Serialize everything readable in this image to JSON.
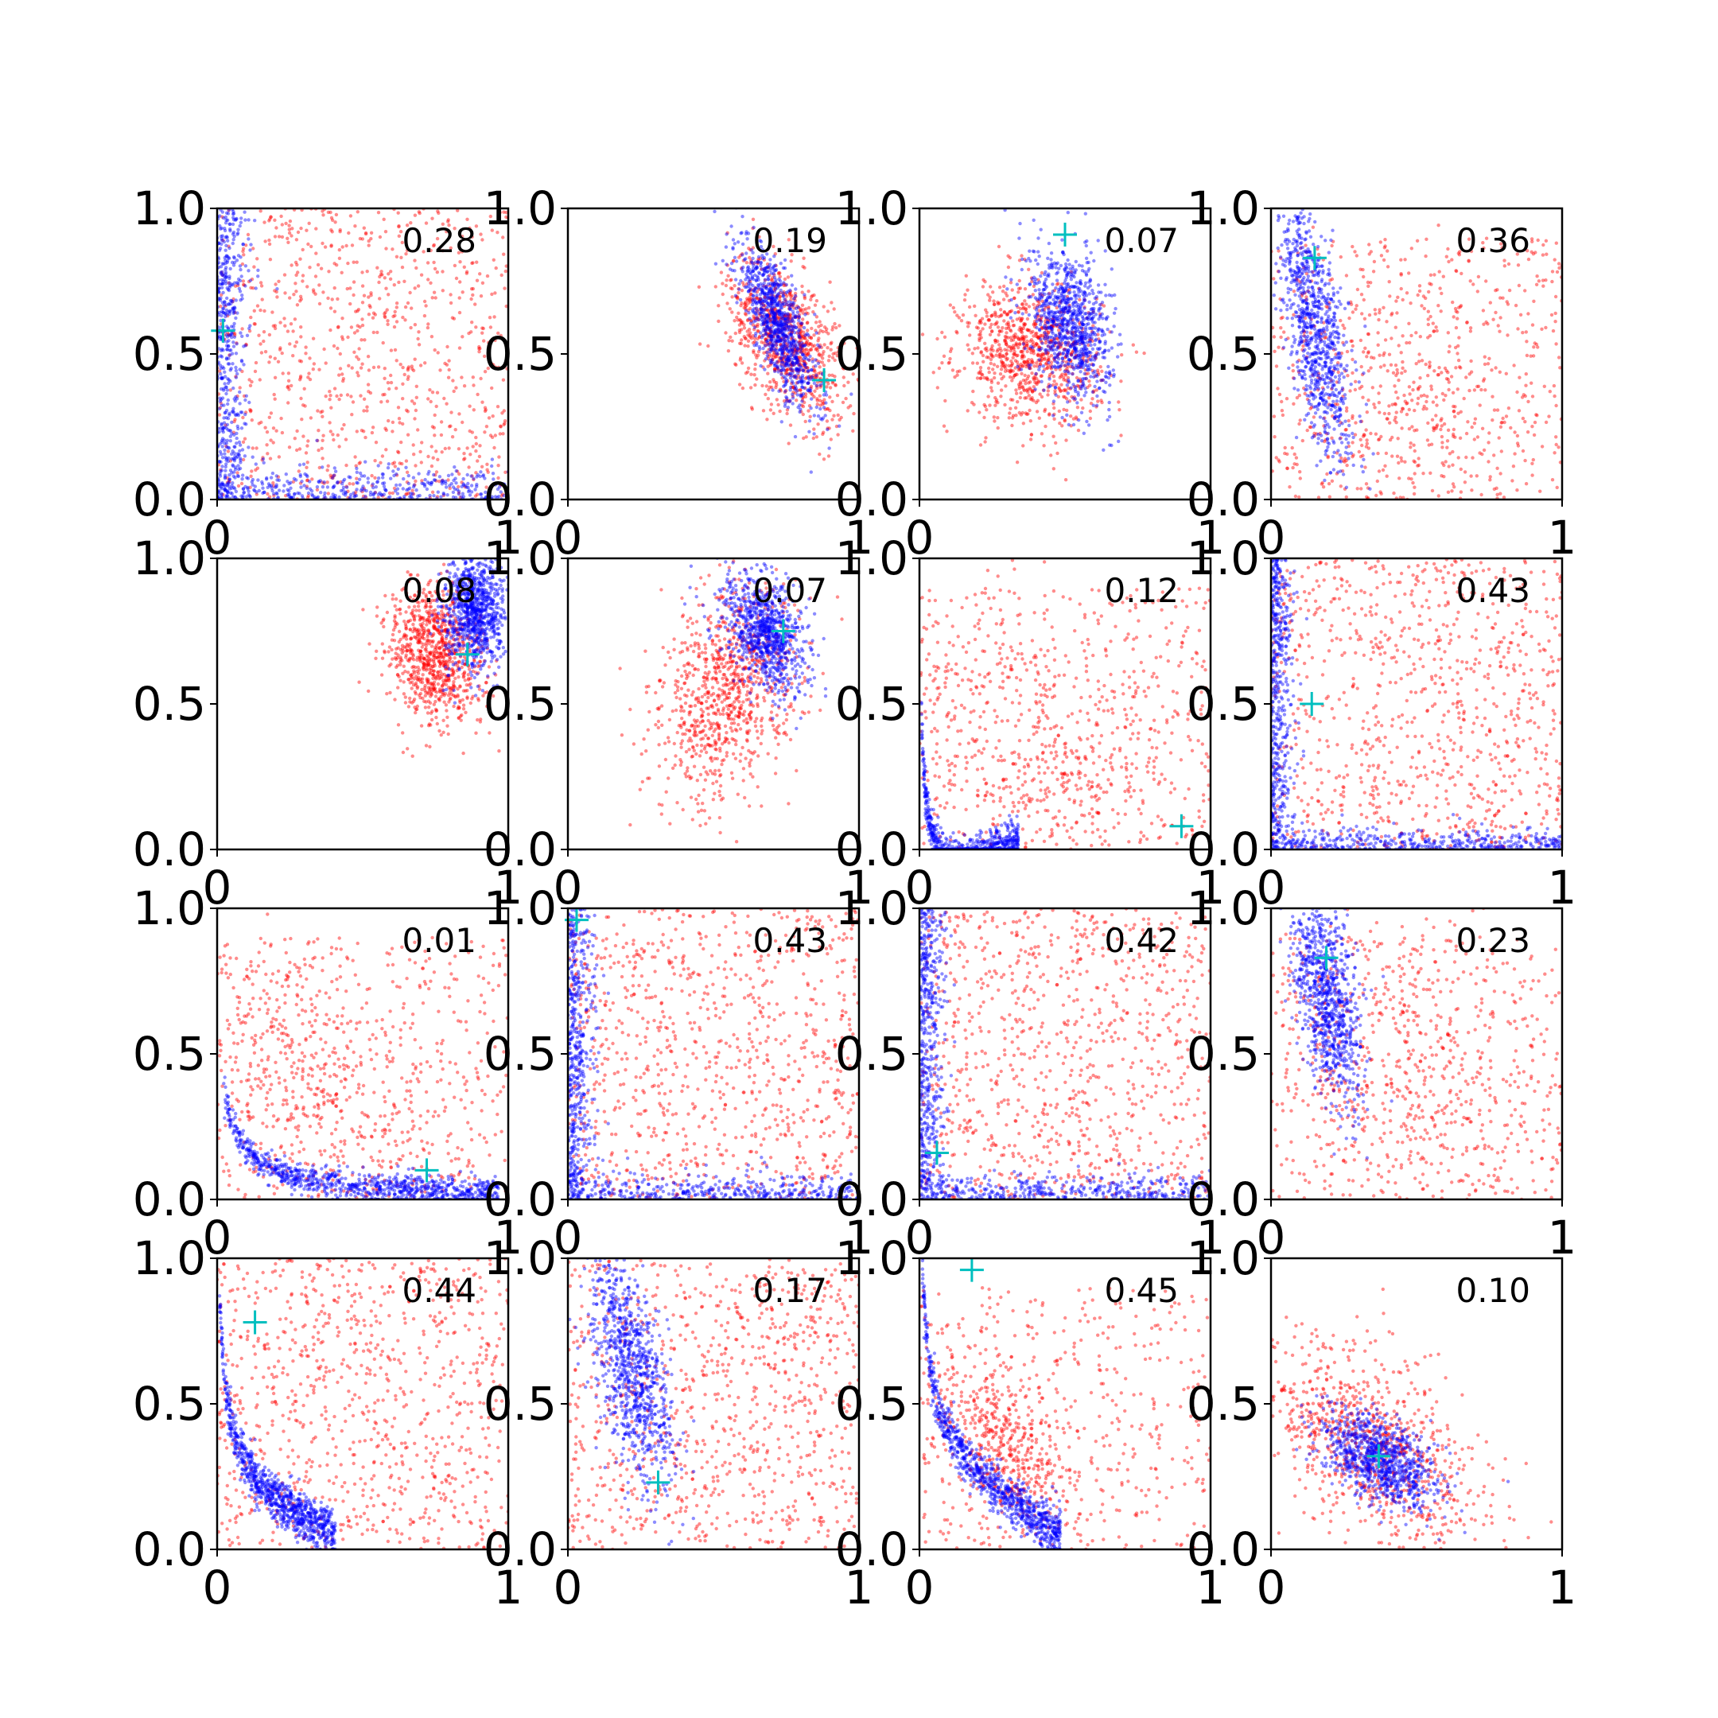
{
  "chart_data": {
    "type": "scatter",
    "layout": "4x4 grid of small multiples",
    "xlim": [
      0,
      1
    ],
    "ylim": [
      0,
      1
    ],
    "x_ticks": [
      0,
      1
    ],
    "y_ticks": [
      0.0,
      0.5,
      1.0
    ],
    "x_tick_labels": [
      "0",
      "1"
    ],
    "y_tick_labels": [
      "0.0",
      "0.5",
      "1.0"
    ],
    "colors": {
      "series_a": "#ff0000",
      "series_b": "#0000ff",
      "marker": "#00bfbf"
    },
    "grid": false,
    "marker_symbol": "+",
    "panels": [
      {
        "label": "0.28",
        "marker": [
          0.02,
          0.58
        ],
        "red": [
          0.45,
          0.55,
          0.25,
          0.2,
          -0.05,
          "uniform"
        ],
        "blue": [
          0.01,
          0.02,
          0.15,
          0.4,
          0,
          "L"
        ]
      },
      {
        "label": "0.19",
        "marker": [
          0.88,
          0.41
        ],
        "red": [
          0.75,
          0.55,
          0.1,
          0.14,
          -0.5,
          "gauss"
        ],
        "blue": [
          0.72,
          0.6,
          0.07,
          0.15,
          -0.8,
          "gauss"
        ]
      },
      {
        "label": "0.07",
        "marker": [
          0.5,
          0.91
        ],
        "red": [
          0.38,
          0.5,
          0.12,
          0.12,
          -0.1,
          "gauss"
        ],
        "blue": [
          0.52,
          0.6,
          0.07,
          0.13,
          -0.3,
          "gauss"
        ]
      },
      {
        "label": "0.36",
        "marker": [
          0.15,
          0.83
        ],
        "red": [
          0.45,
          0.35,
          0.28,
          0.28,
          -0.3,
          "mixed"
        ],
        "blue": [
          0.15,
          0.6,
          0.06,
          0.22,
          -0.6,
          "gauss"
        ]
      },
      {
        "label": "0.08",
        "marker": [
          0.86,
          0.67
        ],
        "red": [
          0.75,
          0.68,
          0.08,
          0.12,
          -0.2,
          "gauss"
        ],
        "blue": [
          0.88,
          0.82,
          0.05,
          0.1,
          0,
          "gauss"
        ]
      },
      {
        "label": "0.07",
        "marker": [
          0.74,
          0.75
        ],
        "red": [
          0.55,
          0.55,
          0.12,
          0.18,
          0.3,
          "gauss"
        ],
        "blue": [
          0.68,
          0.75,
          0.07,
          0.1,
          -0.4,
          "gauss"
        ]
      },
      {
        "label": "0.12",
        "marker": [
          0.9,
          0.08
        ],
        "red": [
          0.4,
          0.35,
          0.25,
          0.25,
          -0.4,
          "mixed"
        ],
        "blue": [
          0.05,
          0.08,
          0.15,
          0.25,
          0,
          "Lcurve"
        ]
      },
      {
        "label": "0.43",
        "marker": [
          0.14,
          0.5
        ],
        "red": [
          0.4,
          0.4,
          0.25,
          0.25,
          -0.3,
          "uniform"
        ],
        "blue": [
          0.03,
          0.03,
          0.1,
          0.4,
          0,
          "L"
        ]
      },
      {
        "label": "0.01",
        "marker": [
          0.72,
          0.1
        ],
        "red": [
          0.35,
          0.4,
          0.25,
          0.25,
          -0.5,
          "mixed"
        ],
        "blue": [
          0.7,
          0.08,
          0.15,
          0.04,
          -0.3,
          "Lcurve"
        ]
      },
      {
        "label": "0.43",
        "marker": [
          0.03,
          0.96
        ],
        "red": [
          0.5,
          0.5,
          0.28,
          0.28,
          0,
          "uniform"
        ],
        "blue": [
          0.02,
          0.02,
          0.12,
          0.45,
          0,
          "L"
        ]
      },
      {
        "label": "0.42",
        "marker": [
          0.06,
          0.16
        ],
        "red": [
          0.5,
          0.5,
          0.28,
          0.28,
          0,
          "uniform"
        ],
        "blue": [
          0.03,
          0.03,
          0.12,
          0.45,
          0,
          "L"
        ]
      },
      {
        "label": "0.23",
        "marker": [
          0.19,
          0.83
        ],
        "red": [
          0.45,
          0.4,
          0.25,
          0.28,
          -0.3,
          "mixed"
        ],
        "blue": [
          0.19,
          0.7,
          0.06,
          0.18,
          -0.5,
          "gauss"
        ]
      },
      {
        "label": "0.44",
        "marker": [
          0.13,
          0.78
        ],
        "red": [
          0.4,
          0.4,
          0.25,
          0.25,
          -0.3,
          "uniform"
        ],
        "blue": [
          0.12,
          0.5,
          0.08,
          0.25,
          -0.5,
          "Lcurve"
        ]
      },
      {
        "label": "0.17",
        "marker": [
          0.31,
          0.23
        ],
        "red": [
          0.45,
          0.4,
          0.25,
          0.25,
          -0.2,
          "uniform"
        ],
        "blue": [
          0.22,
          0.62,
          0.07,
          0.2,
          -0.6,
          "gauss"
        ]
      },
      {
        "label": "0.45",
        "marker": [
          0.18,
          0.96
        ],
        "red": [
          0.3,
          0.35,
          0.12,
          0.15,
          -0.5,
          "mixed"
        ],
        "blue": [
          0.2,
          0.6,
          0.1,
          0.25,
          -0.7,
          "Lcurve"
        ]
      },
      {
        "label": "0.10",
        "marker": [
          0.37,
          0.32
        ],
        "red": [
          0.35,
          0.35,
          0.18,
          0.18,
          -0.5,
          "gauss"
        ],
        "blue": [
          0.38,
          0.3,
          0.1,
          0.08,
          -0.5,
          "gauss"
        ]
      }
    ]
  }
}
